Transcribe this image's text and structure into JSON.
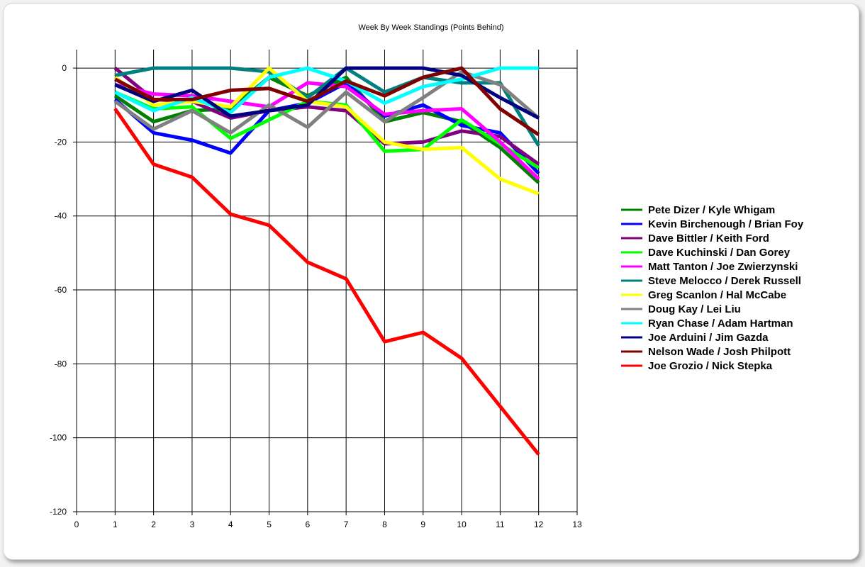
{
  "chart_data": {
    "type": "line",
    "title": "Week By Week Standings (Points Behind)",
    "xlabel": "",
    "ylabel": "",
    "xlim": [
      0,
      13
    ],
    "ylim": [
      -120,
      5
    ],
    "x_ticks": [
      0,
      1,
      2,
      3,
      4,
      5,
      6,
      7,
      8,
      9,
      10,
      11,
      12,
      13
    ],
    "y_ticks": [
      0,
      -20,
      -40,
      -60,
      -80,
      -100,
      -120
    ],
    "grid": true,
    "legend_position": "right",
    "x": [
      1,
      2,
      3,
      4,
      5,
      6,
      7,
      8,
      9,
      10,
      11,
      12
    ],
    "series": [
      {
        "name": "Pete Dizer / Kyle Whigam",
        "color": "#008000",
        "values": [
          -7.5,
          -14.5,
          -11.5,
          -11,
          -2.5,
          -7.5,
          -2.5,
          -14.5,
          -12,
          -14.5,
          -21.5,
          -31
        ]
      },
      {
        "name": "Kevin Birchenough / Brian Foy",
        "color": "#0000ff",
        "values": [
          -8.5,
          -17.5,
          -19.5,
          -23,
          -11.5,
          -9.5,
          -4,
          -13,
          -10,
          -15.5,
          -17.5,
          -28.5
        ]
      },
      {
        "name": "Dave Bittler / Keith Ford",
        "color": "#800080",
        "values": [
          0,
          -8.5,
          -9,
          -13.5,
          -11.5,
          -10.5,
          -11.5,
          -20.5,
          -20,
          -17,
          -18.5,
          -26
        ]
      },
      {
        "name": "Dave Kuchinski / Dan Gorey",
        "color": "#00ff00",
        "values": [
          -6.5,
          -11,
          -10.5,
          -19,
          -14,
          -9,
          -10,
          -22.5,
          -22,
          -14,
          -20.5,
          -27
        ]
      },
      {
        "name": "Matt Tanton / Joe Zwierzynski",
        "color": "#ff00ff",
        "values": [
          -4.5,
          -7,
          -7.5,
          -9,
          -10.5,
          -4,
          -5,
          -12.5,
          -11.5,
          -11,
          -20,
          -30
        ]
      },
      {
        "name": "Steve Melocco / Derek Russell",
        "color": "#008080",
        "values": [
          -2,
          0,
          0,
          0,
          -1,
          -8,
          0,
          -6.5,
          -2.5,
          -4,
          -4,
          -21
        ]
      },
      {
        "name": "Greg Scanlon / Hal McCabe",
        "color": "#ffff00",
        "values": [
          -2.5,
          -10,
          -9,
          -10.5,
          0,
          -9,
          -10.5,
          -20,
          -22,
          -21.5,
          -30,
          -34
        ]
      },
      {
        "name": "Doug Kay / Lei Liu",
        "color": "#808080",
        "values": [
          -9,
          -16.5,
          -11.5,
          -17.5,
          -10,
          -16,
          -6.5,
          -14.5,
          -8,
          -1,
          -4.5,
          -13.5
        ]
      },
      {
        "name": "Ryan Chase / Adam Hartman",
        "color": "#00ffff",
        "values": [
          -6.5,
          -11.5,
          -8,
          -12,
          -2.5,
          0,
          -3.5,
          -9.5,
          -5,
          -3,
          0,
          0
        ]
      },
      {
        "name": "Joe Arduini / Jim Gazda",
        "color": "#000080",
        "values": [
          -4.5,
          -9,
          -6,
          -13,
          -11.5,
          -10,
          0,
          0,
          0,
          -2,
          -8,
          -13.5
        ]
      },
      {
        "name": "Nelson Wade / Josh Philpott",
        "color": "#800000",
        "values": [
          -3,
          -8.5,
          -8.5,
          -6,
          -5.5,
          -9,
          -3.5,
          -7.5,
          -2.5,
          0,
          -11,
          -18
        ]
      },
      {
        "name": "Joe Grozio / Nick Stepka",
        "color": "#ff0000",
        "values": [
          -11,
          -26,
          -29.5,
          -39.5,
          -42.5,
          -52.5,
          -57,
          -74,
          -71.5,
          -78.5,
          -91.5,
          -104.5
        ]
      }
    ]
  }
}
